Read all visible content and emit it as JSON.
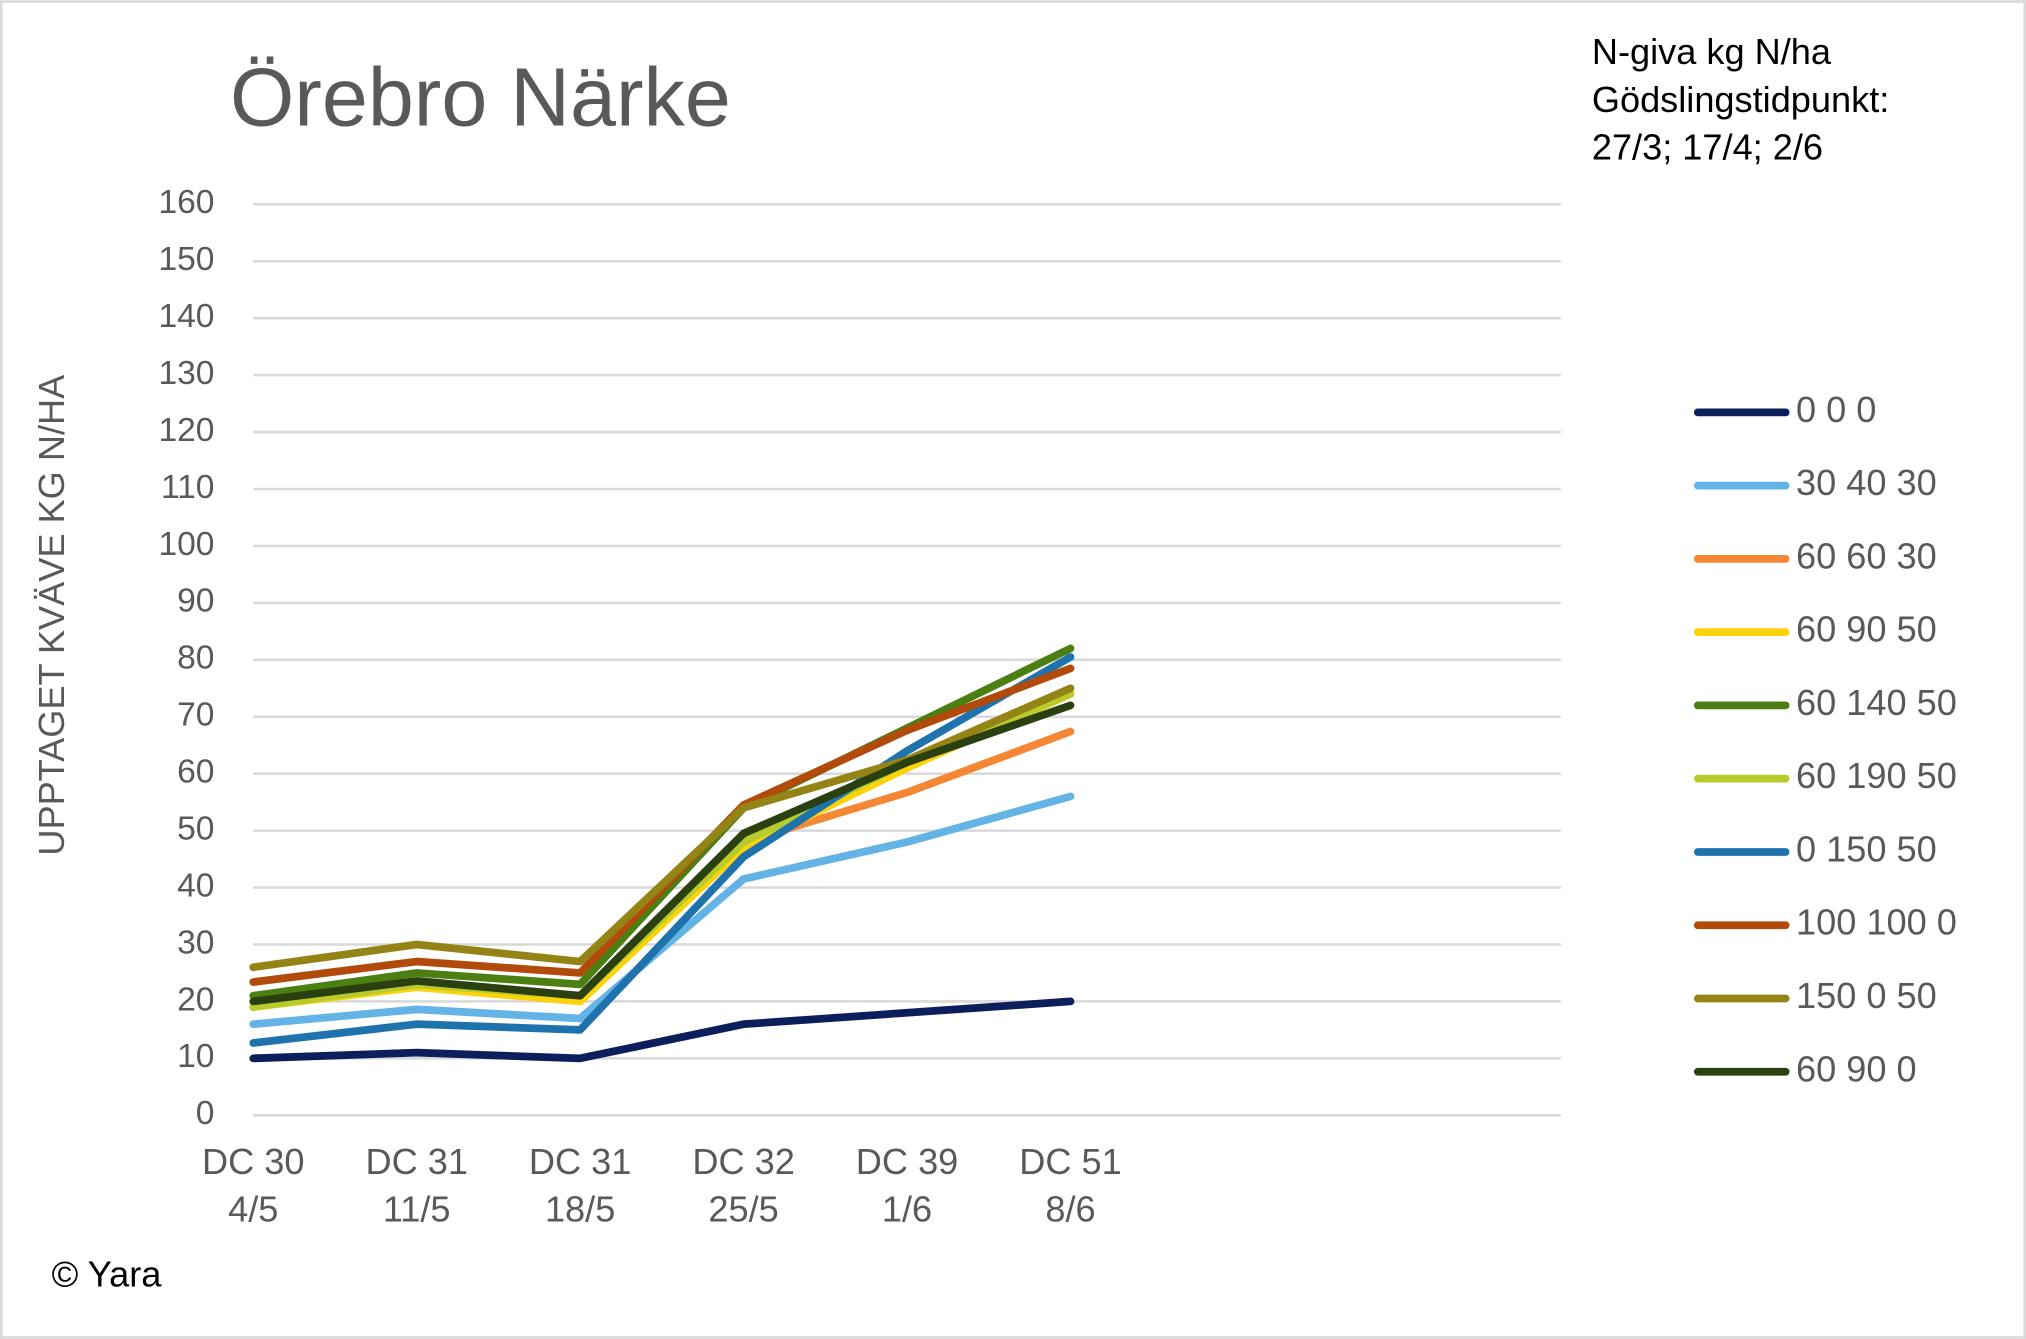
{
  "chart_data": {
    "type": "line",
    "title": "Örebro Närke",
    "annotation": [
      "N-giva kg N/ha",
      "Gödslingstidpunkt:",
      "27/3; 17/4; 2/6"
    ],
    "y_label": "UPPTAGET KVÄVE KG N/HA",
    "source": "© Yara",
    "categories": [
      [
        "DC 30",
        "4/5"
      ],
      [
        "DC 31",
        "11/5"
      ],
      [
        "DC 31",
        "18/5"
      ],
      [
        "DC 32",
        "25/5"
      ],
      [
        "DC 39",
        "1/6"
      ],
      [
        "DC 51",
        "8/6"
      ],
      null,
      null,
      null
    ],
    "ylim": [
      0,
      160
    ],
    "yticks": [
      0,
      10,
      20,
      30,
      40,
      50,
      60,
      70,
      80,
      90,
      100,
      110,
      120,
      130,
      140,
      150,
      160
    ],
    "grid": true,
    "legend": "right",
    "series": [
      {
        "name": "0 0 0",
        "color": "#0c1f5c",
        "values": [
          10,
          11,
          10,
          16,
          18,
          20,
          null,
          null,
          null
        ]
      },
      {
        "name": "30 40 30",
        "color": "#63b3e6",
        "values": [
          16,
          18.6,
          17,
          41.5,
          48,
          56,
          null,
          null,
          null
        ]
      },
      {
        "name": "60 60 30",
        "color": "#f58634",
        "values": [
          19,
          23,
          21,
          48,
          56.7,
          67.4,
          null,
          null,
          null
        ]
      },
      {
        "name": "60 90 50",
        "color": "#fcd208",
        "values": [
          19,
          22.5,
          20,
          47,
          61,
          74,
          null,
          null,
          null
        ]
      },
      {
        "name": "60 140 50",
        "color": "#4b7f12",
        "values": [
          21,
          25,
          23,
          54,
          68,
          82,
          null,
          null,
          null
        ]
      },
      {
        "name": "60 190 50",
        "color": "#b7cc2c",
        "values": [
          19,
          23,
          21,
          48,
          62,
          74,
          null,
          null,
          null
        ]
      },
      {
        "name": "0 150 50",
        "color": "#1f73ac",
        "values": [
          12.7,
          16,
          15,
          45.4,
          64,
          80.5,
          null,
          null,
          null
        ]
      },
      {
        "name": "100 100 0",
        "color": "#b24a0c",
        "values": [
          23.4,
          27,
          25,
          54.5,
          67.6,
          78.5,
          null,
          null,
          null
        ]
      },
      {
        "name": "150 0 50",
        "color": "#948415",
        "values": [
          26,
          30,
          27,
          54,
          62.4,
          75,
          null,
          null,
          null
        ]
      },
      {
        "name": "60 90 0",
        "color": "#2a4010",
        "values": [
          20,
          23.6,
          21,
          49.5,
          62,
          72,
          null,
          null,
          null
        ]
      }
    ]
  }
}
